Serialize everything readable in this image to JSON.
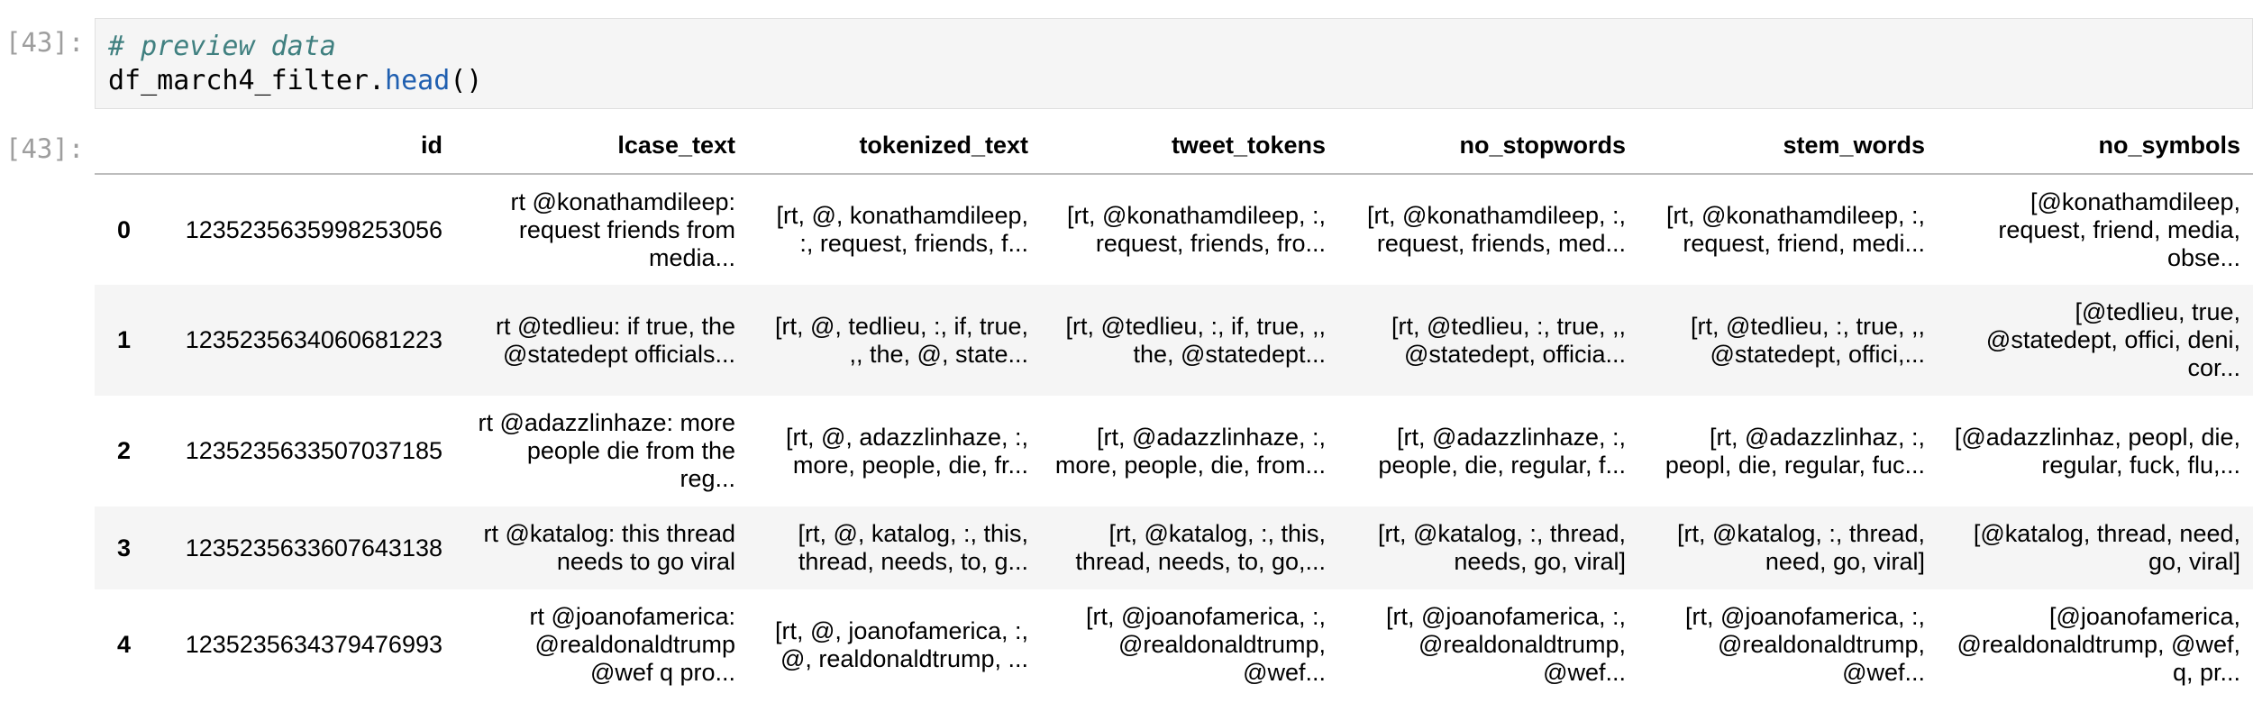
{
  "notebook": {
    "input_prompt": "[43]:",
    "output_prompt": "[43]:",
    "code": {
      "comment": "# preview data",
      "var": "df_march4_filter",
      "dot": ".",
      "method": "head",
      "parens": "()"
    }
  },
  "table": {
    "columns": [
      "",
      "id",
      "lcase_text",
      "tokenized_text",
      "tweet_tokens",
      "no_stopwords",
      "stem_words",
      "no_symbols"
    ],
    "rows": [
      {
        "index": "0",
        "id": "1235235635998253056",
        "lcase_text": "rt @konathamdileep: request friends from media...",
        "tokenized_text": "[rt, @, konathamdileep, :, request, friends, f...",
        "tweet_tokens": "[rt, @konathamdileep, :, request, friends, fro...",
        "no_stopwords": "[rt, @konathamdileep, :, request, friends, med...",
        "stem_words": "[rt, @konathamdileep, :, request, friend, medi...",
        "no_symbols": "[@konathamdileep, request, friend, media, obse..."
      },
      {
        "index": "1",
        "id": "1235235634060681223",
        "lcase_text": "rt @tedlieu: if true, the @statedept officials...",
        "tokenized_text": "[rt, @, tedlieu, :, if, true, ,, the, @, state...",
        "tweet_tokens": "[rt, @tedlieu, :, if, true, ,, the, @statedept...",
        "no_stopwords": "[rt, @tedlieu, :, true, ,, @statedept, officia...",
        "stem_words": "[rt, @tedlieu, :, true, ,, @statedept, offici,...",
        "no_symbols": "[@tedlieu, true, @statedept, offici, deni, cor..."
      },
      {
        "index": "2",
        "id": "1235235633507037185",
        "lcase_text": "rt @adazzlinhaze: more people die from the reg...",
        "tokenized_text": "[rt, @, adazzlinhaze, :, more, people, die, fr...",
        "tweet_tokens": "[rt, @adazzlinhaze, :, more, people, die, from...",
        "no_stopwords": "[rt, @adazzlinhaze, :, people, die, regular, f...",
        "stem_words": "[rt, @adazzlinhaz, :, peopl, die, regular, fuc...",
        "no_symbols": "[@adazzlinhaz, peopl, die, regular, fuck, flu,..."
      },
      {
        "index": "3",
        "id": "1235235633607643138",
        "lcase_text": "rt @katalog: this thread needs to go viral",
        "tokenized_text": "[rt, @, katalog, :, this, thread, needs, to, g...",
        "tweet_tokens": "[rt, @katalog, :, this, thread, needs, to, go,...",
        "no_stopwords": "[rt, @katalog, :, thread, needs, go, viral]",
        "stem_words": "[rt, @katalog, :, thread, need, go, viral]",
        "no_symbols": "[@katalog, thread, need, go, viral]"
      },
      {
        "index": "4",
        "id": "1235235634379476993",
        "lcase_text": "rt @joanofamerica: @realdonaldtrump @wef q pro...",
        "tokenized_text": "[rt, @, joanofamerica, :, @, realdonaldtrump, ...",
        "tweet_tokens": "[rt, @joanofamerica, :, @realdonaldtrump, @wef...",
        "no_stopwords": "[rt, @joanofamerica, :, @realdonaldtrump, @wef...",
        "stem_words": "[rt, @joanofamerica, :, @realdonaldtrump, @wef...",
        "no_symbols": "[@joanofamerica, @realdonaldtrump, @wef, q, pr..."
      }
    ]
  }
}
